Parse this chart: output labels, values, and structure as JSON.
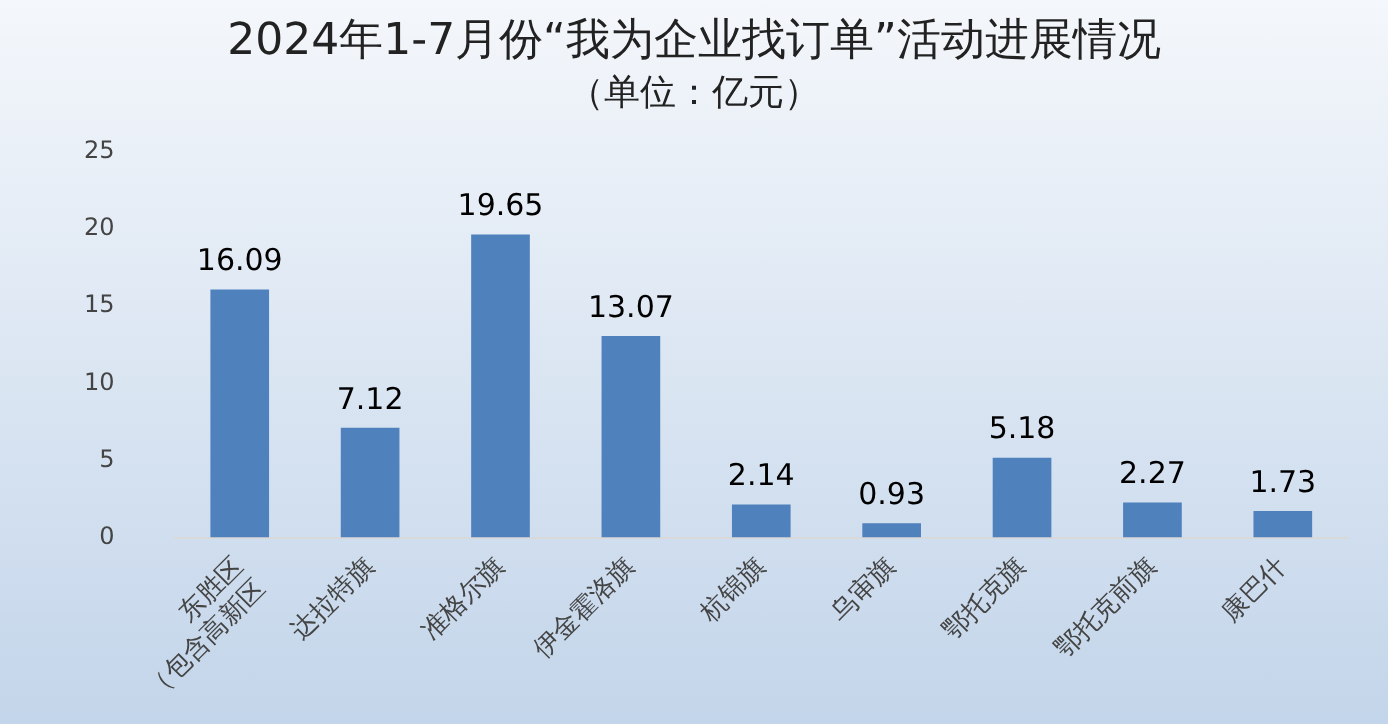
{
  "chart_data": {
    "type": "bar",
    "title": "2024年1-7月份“我为企业找订单”活动进展情况",
    "subtitle": "（单位：亿元）",
    "categories": [
      "东胜区\n（包含高新区",
      "达拉特旗",
      "准格尔旗",
      "伊金霍洛旗",
      "杭锦旗",
      "乌审旗",
      "鄂托克旗",
      "鄂托克前旗",
      "康巴什"
    ],
    "values": [
      16.09,
      7.12,
      19.65,
      13.07,
      2.14,
      0.93,
      5.18,
      2.27,
      1.73
    ],
    "color": "#4f81bd",
    "ylim": [
      0,
      25
    ],
    "yticks": [
      0,
      5,
      10,
      15,
      20,
      25
    ],
    "grid": false,
    "legend": false,
    "data_labels": true
  }
}
